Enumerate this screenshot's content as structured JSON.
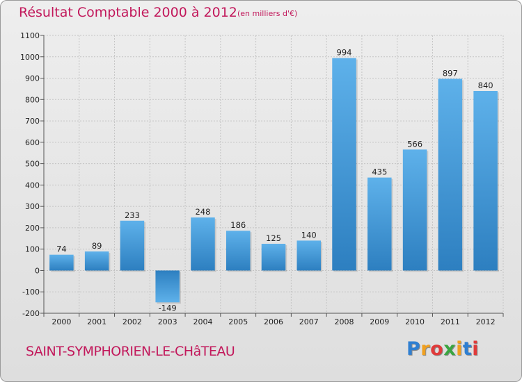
{
  "chart_data": {
    "type": "bar",
    "title": "Résultat Comptable 2000 à 2012",
    "subtitle": "(en milliers d'€)",
    "categories": [
      "2000",
      "2001",
      "2002",
      "2003",
      "2004",
      "2005",
      "2006",
      "2007",
      "2008",
      "2009",
      "2010",
      "2011",
      "2012"
    ],
    "values": [
      74,
      89,
      233,
      -149,
      248,
      186,
      125,
      140,
      994,
      435,
      566,
      897,
      840
    ],
    "ylim": [
      -200,
      1100
    ],
    "yticks": [
      -200,
      -100,
      0,
      100,
      200,
      300,
      400,
      500,
      600,
      700,
      800,
      900,
      1000,
      1100
    ],
    "xlabel": "",
    "ylabel": "",
    "grid": true
  },
  "commune": "SAINT-SYMPHORIEN-LE-CHâTEAU",
  "logo": {
    "letters": [
      "P",
      "r",
      "o",
      "x",
      "i",
      "t",
      "i"
    ],
    "colors": [
      "#2f7fd1",
      "#f0a020",
      "#e03a3a",
      "#3aa540",
      "#f0a020",
      "#2f7fd1",
      "#e03a3a"
    ]
  },
  "colors": {
    "bar_light": "#5eb1ea",
    "bar_dark": "#2d7fc0",
    "accent": "#c2185b"
  }
}
